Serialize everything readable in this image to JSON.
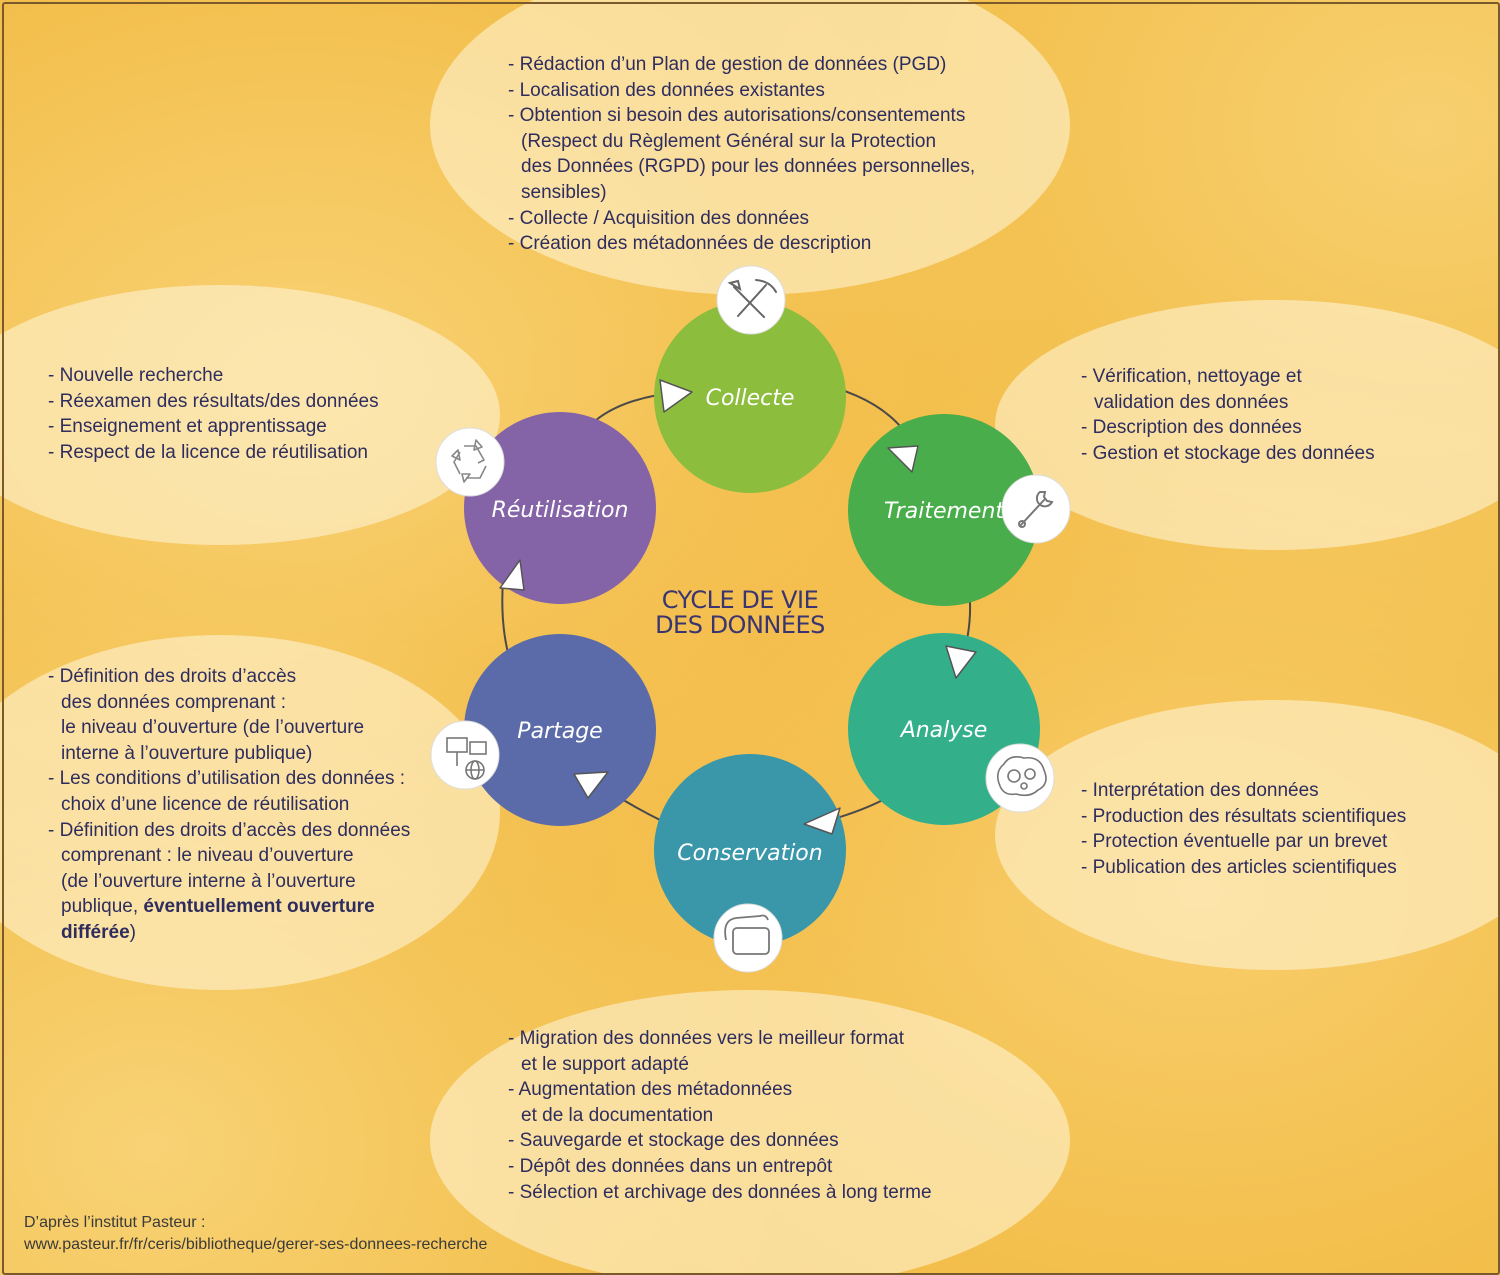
{
  "center_title": {
    "line1": "CYCLE DE VIE",
    "line2": "DES DONNÉES"
  },
  "stages": {
    "collecte": "Collecte",
    "traitement": "Traitement",
    "analyse": "Analyse",
    "conservation": "Conservation",
    "partage": "Partage",
    "reutilisation": "Réutilisation"
  },
  "colors": {
    "collecte": "#8cbd3d",
    "traitement": "#48ad4a",
    "analyse": "#33b08a",
    "conservation": "#3a97aa",
    "partage": "#5b6aa8",
    "reutilisation": "#8563a7",
    "text": "#2e2d5e"
  },
  "icons": {
    "collecte": "shovel-pickaxe-icon",
    "traitement": "wrench-icon",
    "analyse": "brain-gears-icon",
    "conservation": "hard-drive-icon",
    "partage": "network-globe-icon",
    "reutilisation": "recycle-icon"
  },
  "texts": {
    "collecte": [
      "- Rédaction d’un Plan de gestion de données (PGD)",
      "- Localisation des données existantes",
      "- Obtention si besoin des autorisations/consentements",
      "(Respect du Règlement Général sur la Protection",
      "des Données (RGPD) pour les données personnelles,",
      "sensibles)",
      "- Collecte / Acquisition des données",
      "- Création des métadonnées de description"
    ],
    "traitement": [
      "- Vérification, nettoyage et",
      "validation des données",
      "- Description des données",
      "- Gestion et stockage des données"
    ],
    "analyse": [
      "- Interprétation des données",
      "- Production des résultats scientifiques",
      "- Protection éventuelle par un brevet",
      "- Publication des articles scientifiques"
    ],
    "conservation": [
      "- Migration des données vers le meilleur format",
      "et le support adapté",
      "- Augmentation des métadonnées",
      "et de la documentation",
      "- Sauvegarde et stockage des données",
      "- Dépôt des données dans un entrepôt",
      "- Sélection et archivage des données à long terme"
    ],
    "reutilisation": [
      "- Nouvelle recherche",
      "- Réexamen des résultats/des données",
      "- Enseignement et apprentissage",
      "- Respect de la licence de réutilisation"
    ],
    "partage": [
      "- Définition des droits d’accès",
      "des données comprenant :",
      "le niveau d’ouverture (de l’ouverture",
      "interne à l’ouverture publique)",
      "- Les conditions d’utilisation des données :",
      "choix d’une licence de réutilisation",
      "- Définition des droits d’accès des données",
      "comprenant : le niveau d’ouverture",
      "(de l’ouverture interne à l’ouverture",
      "publique, "
    ],
    "partage_bold_1": "éventuellement ouverture",
    "partage_bold_2": "différée",
    "partage_end": ")"
  },
  "credit": {
    "line1": "D’après l’institut Pasteur :",
    "line2": "www.pasteur.fr/fr/ceris/bibliotheque/gerer-ses-donnees-recherche"
  }
}
